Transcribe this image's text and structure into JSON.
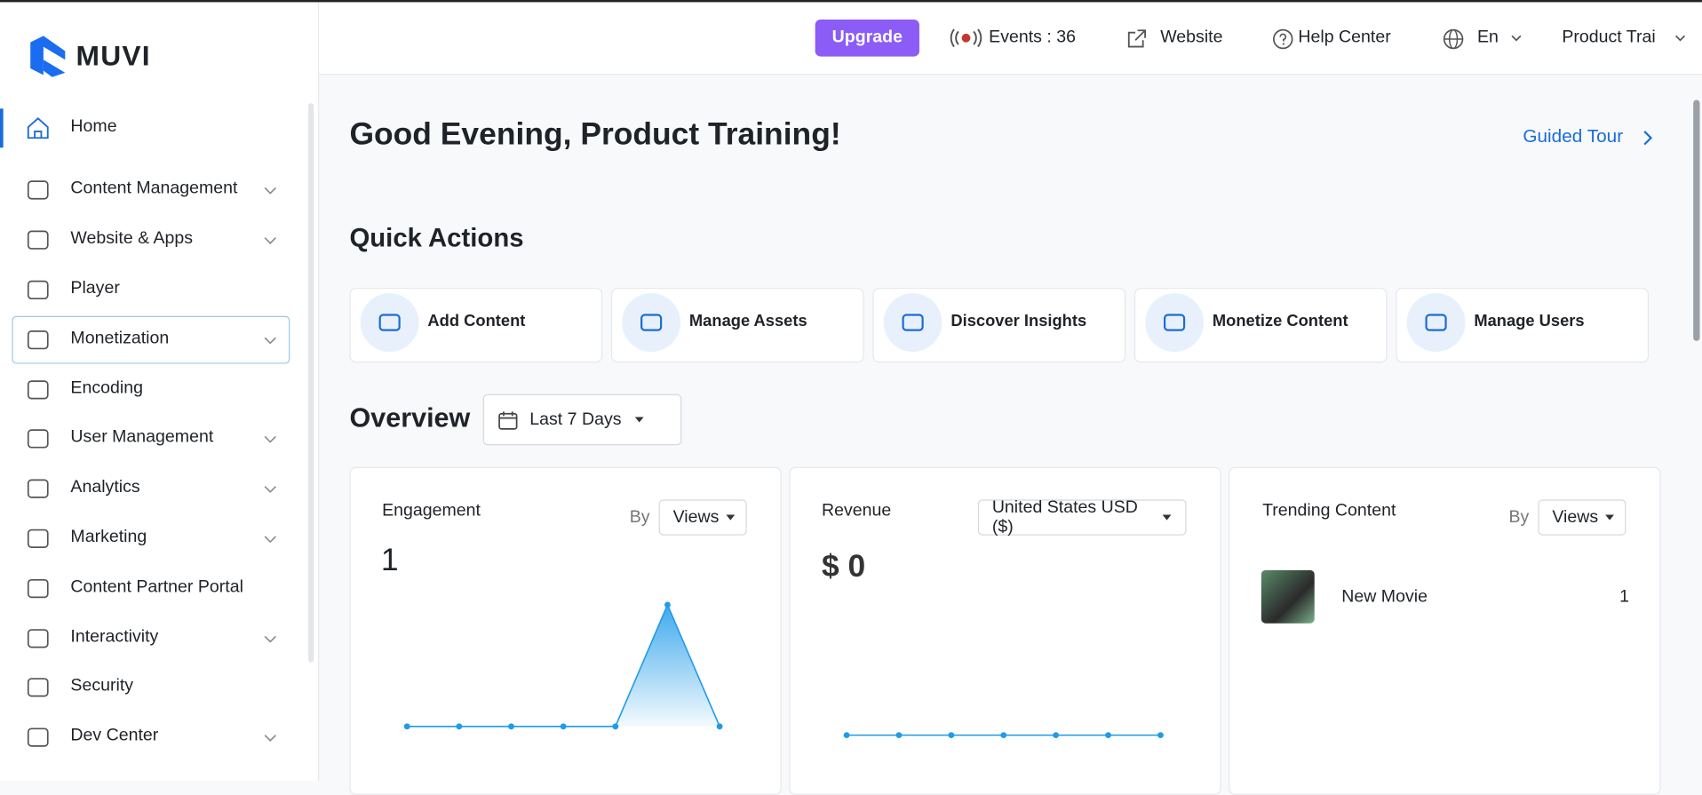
{
  "brand": "MUVI",
  "header": {
    "upgrade": "Upgrade",
    "events": "Events : 36",
    "website": "Website",
    "help": "Help Center",
    "language": "En",
    "user": "Product Trai"
  },
  "sidebar": [
    "Home",
    "Content Management",
    "Website & Apps",
    "Player",
    "Monetization",
    "Encoding",
    "User Management",
    "Analytics",
    "Marketing",
    "Content Partner Portal",
    "Interactivity",
    "Security",
    "Dev Center"
  ],
  "greeting": "Good Evening, Product Training!",
  "guided_tour": "Guided Tour",
  "quick_actions": {
    "title": "Quick Actions",
    "items": [
      "Add Content",
      "Manage Assets",
      "Discover Insights",
      "Monetize Content",
      "Manage Users"
    ]
  },
  "overview": {
    "title": "Overview",
    "range": "Last 7 Days",
    "engagement": {
      "title": "Engagement",
      "by": "By",
      "metric": "Views",
      "total": 1,
      "chart_data": {
        "type": "line",
        "values": [
          0,
          0,
          0,
          0,
          0,
          1,
          0
        ],
        "color": "#1e9be9"
      }
    },
    "revenue": {
      "title": "Revenue",
      "currency": "United States USD ($)",
      "total": "$ 0",
      "chart_data": {
        "type": "line",
        "values": [
          0,
          0,
          0,
          0,
          0,
          0,
          0
        ],
        "color": "#1e9be9"
      }
    },
    "trending": {
      "title": "Trending Content",
      "by": "By",
      "metric": "Views",
      "items": [
        {
          "name": "New Movie",
          "count": 1
        }
      ]
    }
  }
}
